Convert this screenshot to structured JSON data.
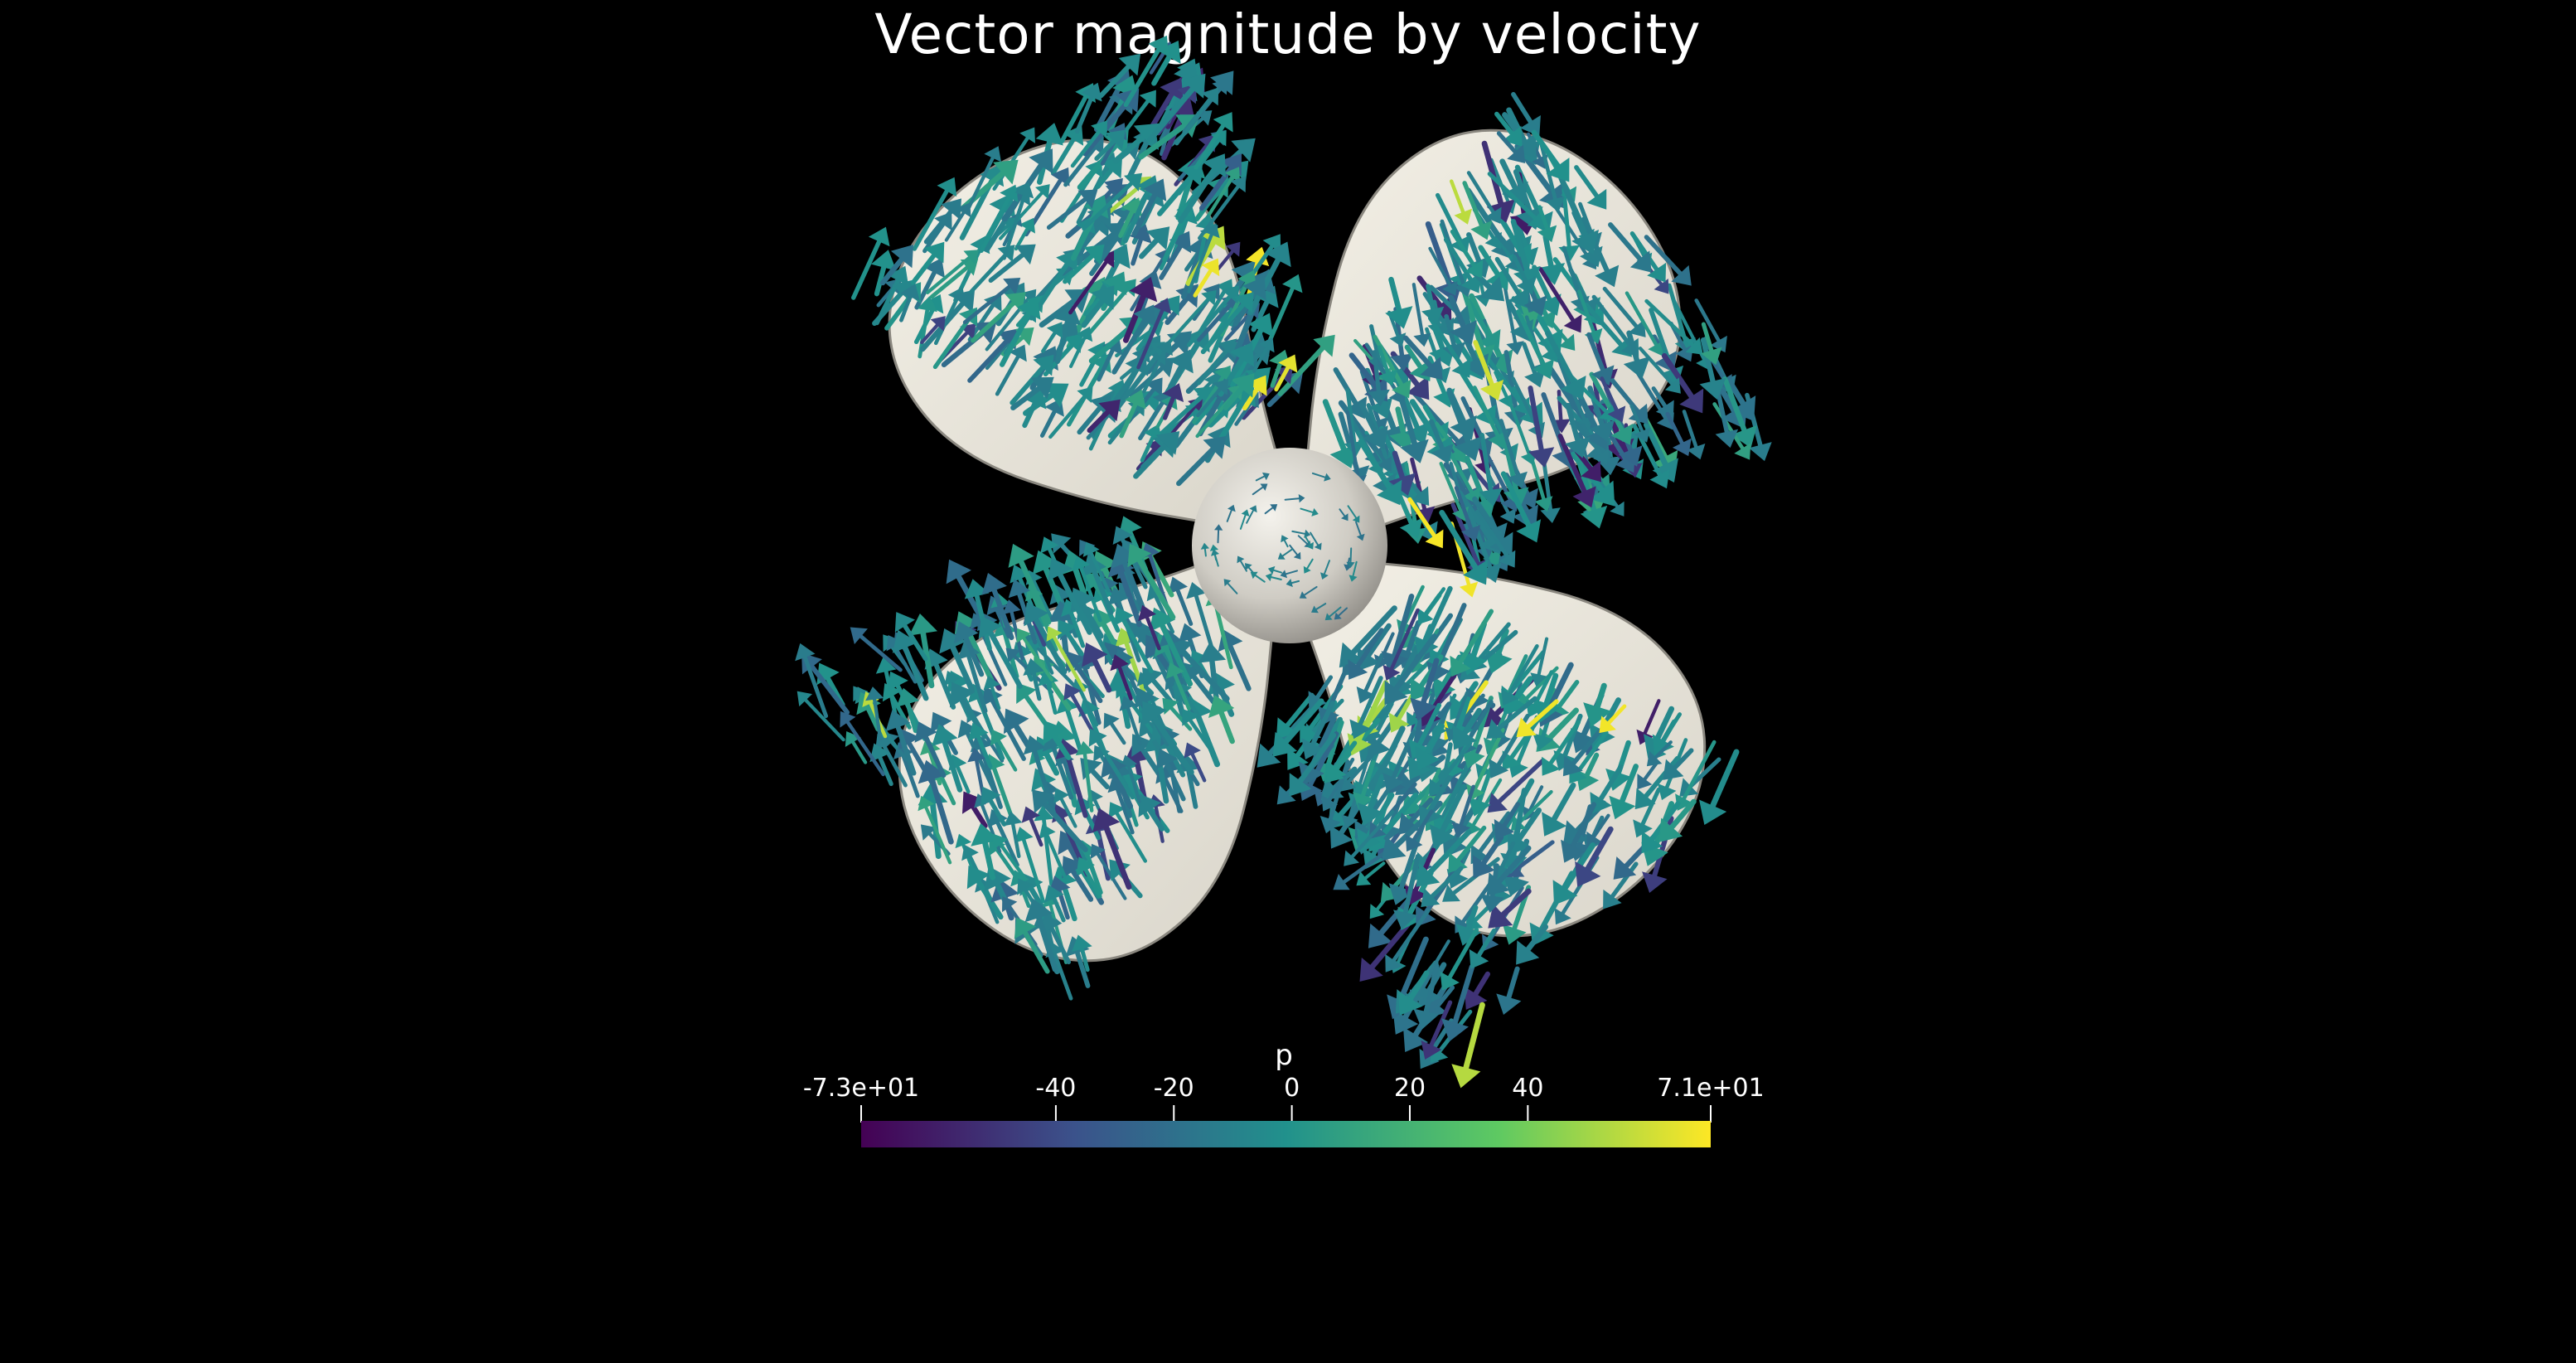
{
  "title": "Vector magnitude by velocity",
  "colorbar": {
    "label": "p",
    "min": -73,
    "max": 71,
    "min_label": "-7.3e+01",
    "max_label": "7.1e+01",
    "ticks": [
      {
        "value": -73,
        "label": "-7.3e+01"
      },
      {
        "value": -40,
        "label": "-40"
      },
      {
        "value": -20,
        "label": "-20"
      },
      {
        "value": 0,
        "label": "0"
      },
      {
        "value": 20,
        "label": "20"
      },
      {
        "value": 40,
        "label": "40"
      },
      {
        "value": 71,
        "label": "7.1e+01"
      }
    ],
    "colormap": "viridis",
    "colors": [
      "#440154",
      "#3b528b",
      "#21918c",
      "#5ec962",
      "#fde725"
    ]
  },
  "scene": {
    "object": "propeller",
    "blade_count": 4,
    "surface_color": "#ece8dc",
    "background": "#000000",
    "glyph_type": "arrow"
  }
}
